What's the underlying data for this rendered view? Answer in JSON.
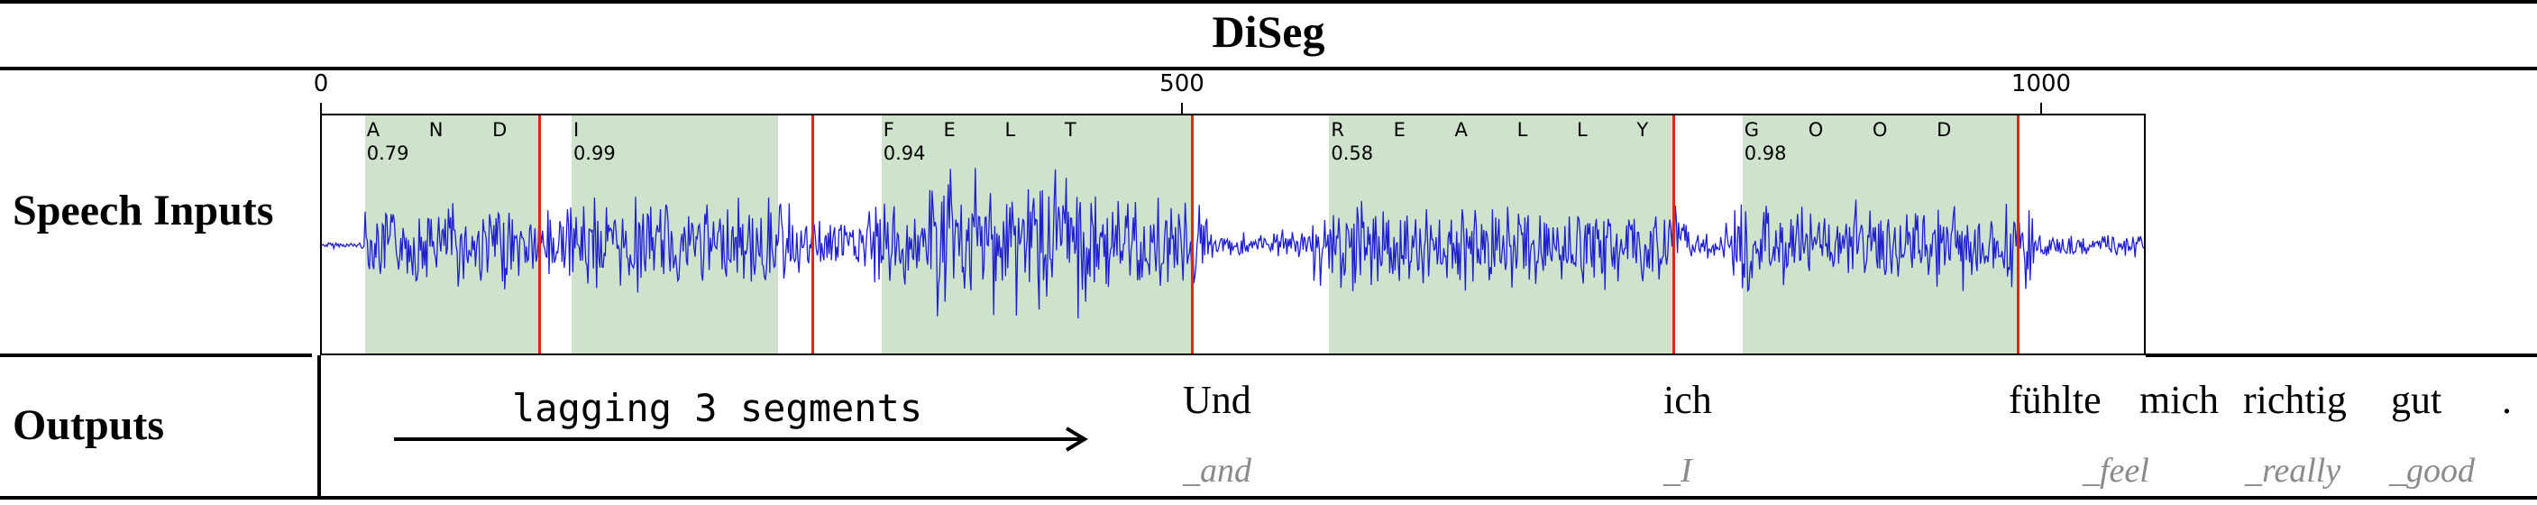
{
  "title": "DiSeg",
  "rows": {
    "speech_label": "Speech Inputs",
    "outputs_label": "Outputs"
  },
  "axis": {
    "ticks": [
      {
        "label": "0",
        "value": 0
      },
      {
        "label": "500",
        "value": 500
      },
      {
        "label": "1000",
        "value": 1000
      }
    ],
    "range": [
      0,
      1060
    ]
  },
  "segments": [
    {
      "letters": "A N D",
      "score": "0.79",
      "start": 25,
      "end": 126
    },
    {
      "letters": "I",
      "score": "0.99",
      "start": 145,
      "end": 265
    },
    {
      "letters": "F E L T",
      "score": "0.94",
      "start": 325,
      "end": 505
    },
    {
      "letters": "R E A L L Y",
      "score": "0.58",
      "start": 585,
      "end": 785
    },
    {
      "letters": "G O O D",
      "score": "0.98",
      "start": 825,
      "end": 985
    }
  ],
  "boundaries": [
    126,
    285,
    505,
    785,
    985
  ],
  "lag_text": "lagging 3 segments",
  "outputs": [
    {
      "word": "Und",
      "gloss": "_and"
    },
    {
      "word": "ich",
      "gloss": "_I"
    },
    {
      "word": "fühlte",
      "gloss": "_feel"
    },
    {
      "word": "mich",
      "gloss": ""
    },
    {
      "word": "richtig",
      "gloss": "_really"
    },
    {
      "word": "gut",
      "gloss": "_good"
    },
    {
      "word": ".",
      "gloss": ""
    }
  ],
  "colors": {
    "segment_fill": "#cfe3cc",
    "boundary": "#e0281a",
    "waveform": "#1f1fd0",
    "gloss": "#8a8a8a"
  }
}
